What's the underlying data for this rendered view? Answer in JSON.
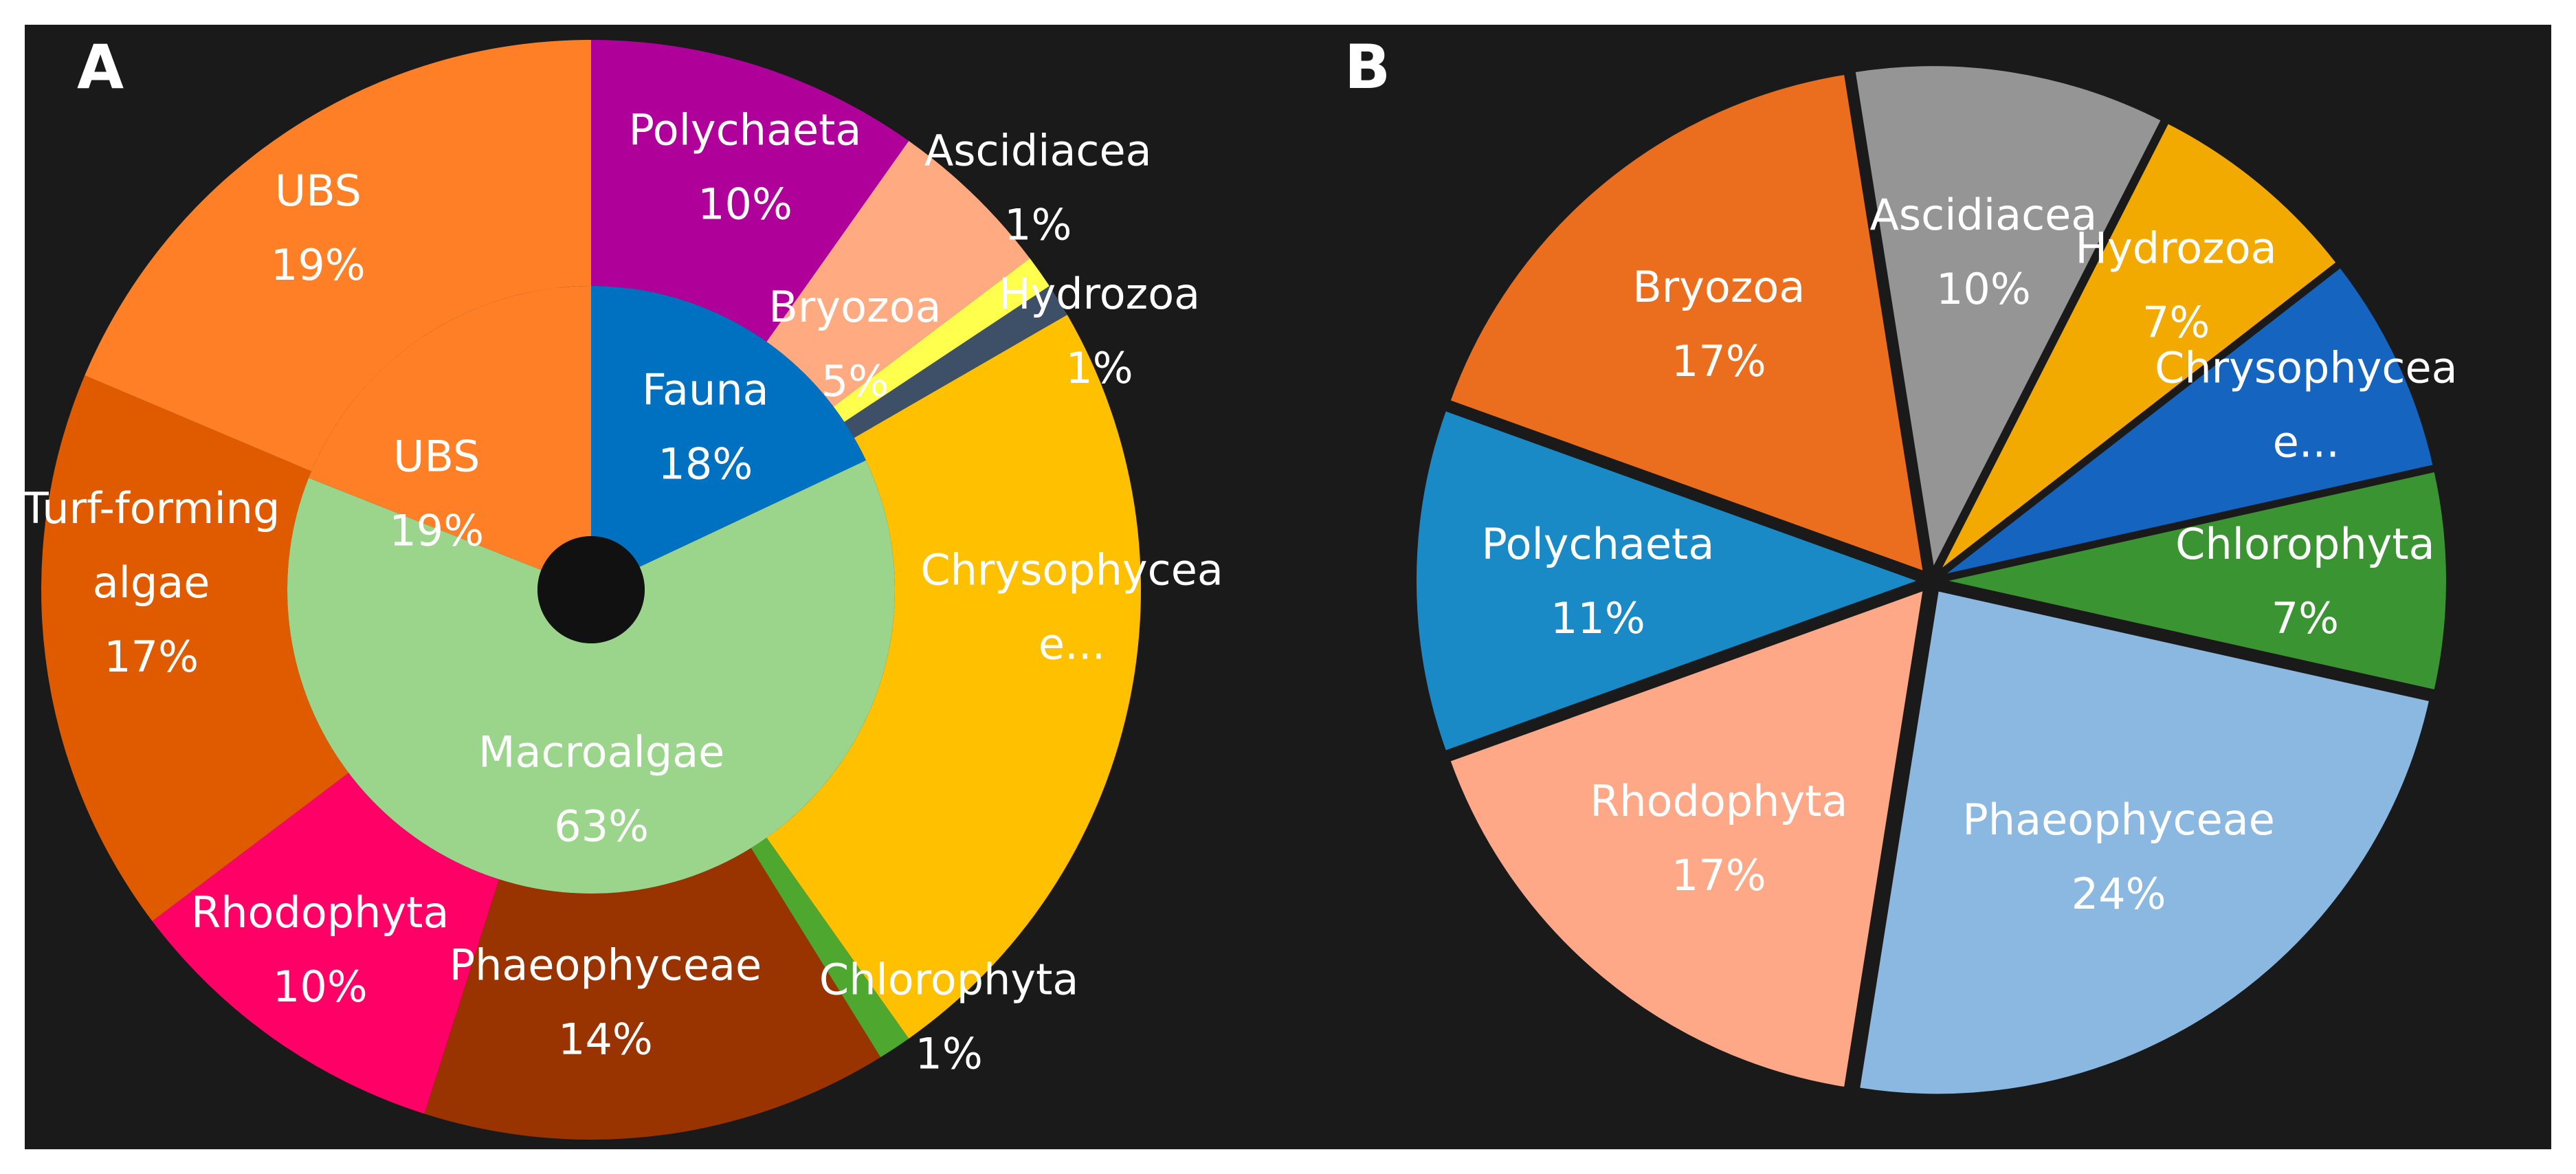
{
  "colors": {
    "background": "#1a1a1a",
    "page": "#ffffff",
    "label": "#ffffff",
    "hole": "#111111",
    "separator": "#1a1a1a"
  },
  "chart_data": [
    {
      "panel": "A",
      "type": "pie",
      "variant": "sunburst",
      "inner_ring": [
        {
          "name": "Fauna",
          "value": 18,
          "label": [
            "Fauna",
            "18%"
          ],
          "color": "#0070c0"
        },
        {
          "name": "Macroalgae",
          "value": 63,
          "label": [
            "Macroalgae",
            "63%"
          ],
          "color": "#9bd48b"
        },
        {
          "name": "UBS",
          "value": 19,
          "label": [
            "UBS",
            "19%"
          ],
          "color": "#ff7f27"
        }
      ],
      "outer_ring": [
        {
          "name": "Polychaeta",
          "value": 10,
          "label": [
            "Polychaeta",
            "10%"
          ],
          "color": "#b0009a"
        },
        {
          "name": "Bryozoa",
          "value": 5,
          "label": [
            "Bryozoa",
            "5%"
          ],
          "color": "#ffaa80"
        },
        {
          "name": "Ascidiacea",
          "value": 1,
          "label": [
            "Ascidiacea",
            "1%"
          ],
          "color": "#ffff4d"
        },
        {
          "name": "Hydrozoa",
          "value": 1,
          "label": [
            "Hydrozoa",
            "1%"
          ],
          "color": "#3e5068"
        },
        {
          "name": "Chrysophyceae",
          "value": 24,
          "label": [
            "Chrysophycea",
            "e..."
          ],
          "color": "#ffc000"
        },
        {
          "name": "Chlorophyta",
          "value": 1,
          "label": [
            "Chlorophyta",
            "1%"
          ],
          "color": "#4ea72e"
        },
        {
          "name": "Phaeophyceae",
          "value": 14,
          "label": [
            "Phaeophyceae",
            "14%"
          ],
          "color": "#993300"
        },
        {
          "name": "Rhodophyta",
          "value": 10,
          "label": [
            "Rhodophyta",
            "10%"
          ],
          "color": "#ff0066"
        },
        {
          "name": "Turf-forming algae",
          "value": 17,
          "label": [
            "Turf-forming",
            "algae",
            "17%"
          ],
          "color": "#e05a00"
        },
        {
          "name": "UBS",
          "value": 19,
          "label": [
            "UBS",
            "19%"
          ],
          "color": "#ff7f27"
        }
      ]
    },
    {
      "panel": "B",
      "type": "pie",
      "variant": "exploded",
      "slices": [
        {
          "name": "Ascidiacea",
          "value": 10,
          "label": [
            "Ascidiacea",
            "10%"
          ],
          "color": "#959595"
        },
        {
          "name": "Hydrozoa",
          "value": 7,
          "label": [
            "Hydrozoa",
            "7%"
          ],
          "color": "#f2a900"
        },
        {
          "name": "Chrysophyceae",
          "value": 7,
          "label": [
            "Chrysophycea",
            "e..."
          ],
          "color": "#1565c0"
        },
        {
          "name": "Chlorophyta",
          "value": 7,
          "label": [
            "Chlorophyta",
            "7%"
          ],
          "color": "#3a9431"
        },
        {
          "name": "Phaeophyceae",
          "value": 24,
          "label": [
            "Phaeophyceae",
            "24%"
          ],
          "color": "#8bb8e0"
        },
        {
          "name": "Rhodophyta",
          "value": 17,
          "label": [
            "Rhodophyta",
            "17%"
          ],
          "color": "#ffa888"
        },
        {
          "name": "Polychaeta",
          "value": 11,
          "label": [
            "Polychaeta",
            "11%"
          ],
          "color": "#1a8ac6"
        },
        {
          "name": "Bryozoa",
          "value": 17,
          "label": [
            "Bryozoa",
            "17%"
          ],
          "color": "#eb6e1f"
        }
      ]
    }
  ]
}
